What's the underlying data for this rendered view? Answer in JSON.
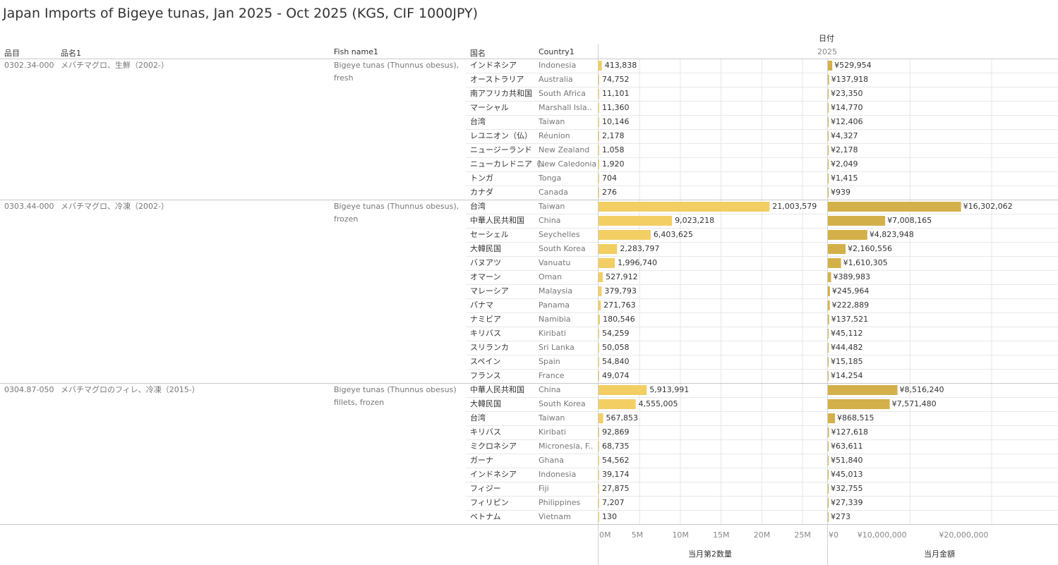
{
  "title": "Japan Imports of Bigeye tunas, Jan 2025 - Oct 2025 (KGS, CIF 1000JPY)",
  "headers": {
    "hinmoku": "品目",
    "hinmei": "品名1",
    "fish_name": "Fish name1",
    "kokumei": "国名",
    "country": "Country1",
    "date": "日付",
    "year": "2025"
  },
  "axes": {
    "qty_title": "当月第2数量",
    "qty_ticks": [
      "0M",
      "5M",
      "10M",
      "15M",
      "20M",
      "25M"
    ],
    "amt_title": "当月金額",
    "amt_ticks": [
      "¥0",
      "¥10,000,000",
      "¥20,000,000"
    ]
  },
  "colors": {
    "qty_bar": "#F2CE63",
    "amt_bar": "#D4B04A",
    "grid": "#E6E6E6",
    "separator": "#C8C8C8"
  },
  "groups": [
    {
      "code": "0302.34-000",
      "name_ja": "メバチマグロ、生鮮（2002-）",
      "fish_name": "Bigeye tunas (Thunnus obesus), fresh",
      "rows": [
        {
          "kokumei": "インドネシア",
          "country": "Indonesia",
          "qty": 413838,
          "qty_label": "413,838",
          "amt": 529954,
          "amt_label": "¥529,954"
        },
        {
          "kokumei": "オーストラリア",
          "country": "Australia",
          "qty": 74752,
          "qty_label": "74,752",
          "amt": 137918,
          "amt_label": "¥137,918"
        },
        {
          "kokumei": "南アフリカ共和国",
          "country": "South Africa",
          "qty": 11101,
          "qty_label": "11,101",
          "amt": 23350,
          "amt_label": "¥23,350"
        },
        {
          "kokumei": "マーシャル",
          "country": "Marshall Isla..",
          "qty": 11360,
          "qty_label": "11,360",
          "amt": 14770,
          "amt_label": "¥14,770"
        },
        {
          "kokumei": "台湾",
          "country": "Taiwan",
          "qty": 10146,
          "qty_label": "10,146",
          "amt": 12406,
          "amt_label": "¥12,406"
        },
        {
          "kokumei": "レユニオン（仏）",
          "country": "Réunion",
          "qty": 2178,
          "qty_label": "2,178",
          "amt": 4327,
          "amt_label": "¥4,327"
        },
        {
          "kokumei": "ニュージーランド",
          "country": "New Zealand",
          "qty": 1058,
          "qty_label": "1,058",
          "amt": 2178,
          "amt_label": "¥2,178"
        },
        {
          "kokumei": "ニューカレドニア（..",
          "country": "New Caledonia",
          "qty": 1920,
          "qty_label": "1,920",
          "amt": 2049,
          "amt_label": "¥2,049"
        },
        {
          "kokumei": "トンガ",
          "country": "Tonga",
          "qty": 704,
          "qty_label": "704",
          "amt": 1415,
          "amt_label": "¥1,415"
        },
        {
          "kokumei": "カナダ",
          "country": "Canada",
          "qty": 276,
          "qty_label": "276",
          "amt": 939,
          "amt_label": "¥939"
        }
      ]
    },
    {
      "code": "0303.44-000",
      "name_ja": "メバチマグロ、冷凍（2002-）",
      "fish_name": "Bigeye tunas (Thunnus obesus), frozen",
      "rows": [
        {
          "kokumei": "台湾",
          "country": "Taiwan",
          "qty": 21003579,
          "qty_label": "21,003,579",
          "amt": 16302062,
          "amt_label": "¥16,302,062"
        },
        {
          "kokumei": "中華人民共和国",
          "country": "China",
          "qty": 9023218,
          "qty_label": "9,023,218",
          "amt": 7008165,
          "amt_label": "¥7,008,165"
        },
        {
          "kokumei": "セーシェル",
          "country": "Seychelles",
          "qty": 6403625,
          "qty_label": "6,403,625",
          "amt": 4823948,
          "amt_label": "¥4,823,948"
        },
        {
          "kokumei": "大韓民国",
          "country": "South Korea",
          "qty": 2283797,
          "qty_label": "2,283,797",
          "amt": 2160556,
          "amt_label": "¥2,160,556"
        },
        {
          "kokumei": "バヌアツ",
          "country": "Vanuatu",
          "qty": 1996740,
          "qty_label": "1,996,740",
          "amt": 1610305,
          "amt_label": "¥1,610,305"
        },
        {
          "kokumei": "オマーン",
          "country": "Oman",
          "qty": 527912,
          "qty_label": "527,912",
          "amt": 389983,
          "amt_label": "¥389,983"
        },
        {
          "kokumei": "マレーシア",
          "country": "Malaysia",
          "qty": 379793,
          "qty_label": "379,793",
          "amt": 245964,
          "amt_label": "¥245,964"
        },
        {
          "kokumei": "パナマ",
          "country": "Panama",
          "qty": 271763,
          "qty_label": "271,763",
          "amt": 222889,
          "amt_label": "¥222,889"
        },
        {
          "kokumei": "ナミビア",
          "country": "Namibia",
          "qty": 180546,
          "qty_label": "180,546",
          "amt": 137521,
          "amt_label": "¥137,521"
        },
        {
          "kokumei": "キリバス",
          "country": "Kiribati",
          "qty": 54259,
          "qty_label": "54,259",
          "amt": 45112,
          "amt_label": "¥45,112"
        },
        {
          "kokumei": "スリランカ",
          "country": "Sri Lanka",
          "qty": 50058,
          "qty_label": "50,058",
          "amt": 44482,
          "amt_label": "¥44,482"
        },
        {
          "kokumei": "スペイン",
          "country": "Spain",
          "qty": 54840,
          "qty_label": "54,840",
          "amt": 15185,
          "amt_label": "¥15,185"
        },
        {
          "kokumei": "フランス",
          "country": "France",
          "qty": 49074,
          "qty_label": "49,074",
          "amt": 14254,
          "amt_label": "¥14,254"
        }
      ]
    },
    {
      "code": "0304.87-050",
      "name_ja": "メバチマグロのフィレ、冷凍（2015-）",
      "fish_name": "Bigeye tunas (Thunnus obesus) fillets, frozen",
      "rows": [
        {
          "kokumei": "中華人民共和国",
          "country": "China",
          "qty": 5913991,
          "qty_label": "5,913,991",
          "amt": 8516240,
          "amt_label": "¥8,516,240"
        },
        {
          "kokumei": "大韓民国",
          "country": "South Korea",
          "qty": 4555005,
          "qty_label": "4,555,005",
          "amt": 7571480,
          "amt_label": "¥7,571,480"
        },
        {
          "kokumei": "台湾",
          "country": "Taiwan",
          "qty": 567853,
          "qty_label": "567,853",
          "amt": 868515,
          "amt_label": "¥868,515"
        },
        {
          "kokumei": "キリバス",
          "country": "Kiribati",
          "qty": 92869,
          "qty_label": "92,869",
          "amt": 127618,
          "amt_label": "¥127,618"
        },
        {
          "kokumei": "ミクロネシア",
          "country": "Micronesia, F..",
          "qty": 68735,
          "qty_label": "68,735",
          "amt": 63611,
          "amt_label": "¥63,611"
        },
        {
          "kokumei": "ガーナ",
          "country": "Ghana",
          "qty": 54562,
          "qty_label": "54,562",
          "amt": 51840,
          "amt_label": "¥51,840"
        },
        {
          "kokumei": "インドネシア",
          "country": "Indonesia",
          "qty": 39174,
          "qty_label": "39,174",
          "amt": 45013,
          "amt_label": "¥45,013"
        },
        {
          "kokumei": "フィジー",
          "country": "Fiji",
          "qty": 27875,
          "qty_label": "27,875",
          "amt": 32755,
          "amt_label": "¥32,755"
        },
        {
          "kokumei": "フィリピン",
          "country": "Philippines",
          "qty": 7207,
          "qty_label": "7,207",
          "amt": 27339,
          "amt_label": "¥27,339"
        },
        {
          "kokumei": "ベトナム",
          "country": "Vietnam",
          "qty": 130,
          "qty_label": "130",
          "amt": 273,
          "amt_label": "¥273"
        }
      ]
    }
  ],
  "chart_data": {
    "type": "bar",
    "title": "Japan Imports of Bigeye tunas, Jan 2025 - Oct 2025 (KGS, CIF 1000JPY)",
    "orientation": "horizontal",
    "x_axes": [
      {
        "label": "当月第2数量",
        "range": [
          0,
          28000000
        ],
        "ticks": [
          "0M",
          "5M",
          "10M",
          "15M",
          "20M",
          "25M"
        ]
      },
      {
        "label": "当月金額",
        "range": [
          0,
          28000000
        ],
        "ticks": [
          "¥0",
          "¥10,000,000",
          "¥20,000,000"
        ]
      }
    ],
    "column_header": "2025",
    "series": [
      {
        "name": "当月第2数量",
        "note_values_from_groups": "qty"
      },
      {
        "name": "当月金額",
        "note_values_from_groups": "amt"
      }
    ],
    "grid": true
  }
}
